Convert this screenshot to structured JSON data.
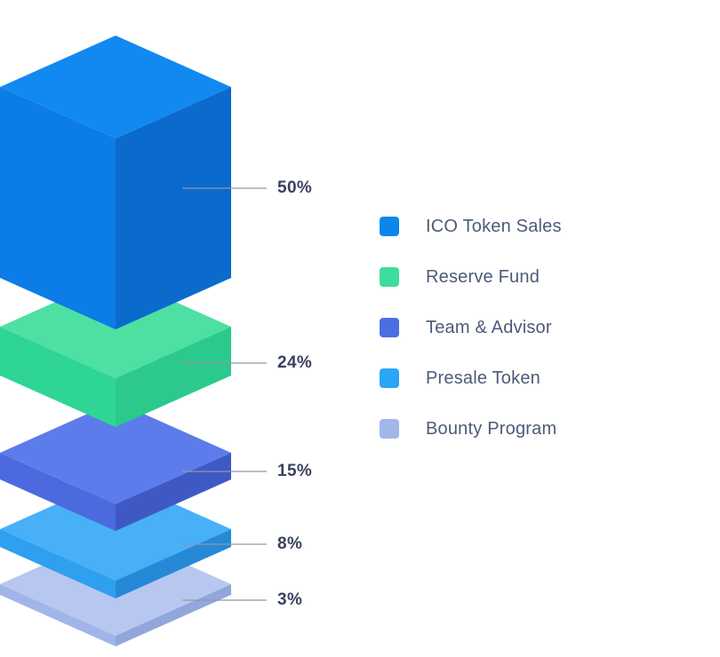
{
  "chart_data": {
    "type": "bar",
    "variant": "isometric-3d-stack",
    "title": "",
    "unit": "%",
    "categories": [
      "ICO Token Sales",
      "Reserve Fund",
      "Team & Advisor",
      "Presale Token",
      "Bounty Program"
    ],
    "values": [
      50,
      24,
      15,
      8,
      3
    ],
    "legend_position": "right",
    "grid": false,
    "layers": [
      {
        "label": "ICO Token Sales",
        "value": 50,
        "percent_label": "50%",
        "face_colors": {
          "top": "#1289f0",
          "left": "#0c7ce6",
          "right": "#0a6bcd"
        }
      },
      {
        "label": "Reserve Fund",
        "value": 24,
        "percent_label": "24%",
        "face_colors": {
          "top": "#4de0a2",
          "left": "#2fd595",
          "right": "#2cc98c"
        }
      },
      {
        "label": "Team & Advisor",
        "value": 15,
        "percent_label": "15%",
        "face_colors": {
          "top": "#5d7cec",
          "left": "#4b6ade",
          "right": "#3f59c4"
        }
      },
      {
        "label": "Presale Token",
        "value": 8,
        "percent_label": "8%",
        "face_colors": {
          "top": "#47b0f7",
          "left": "#2f9ff0",
          "right": "#2589d8"
        }
      },
      {
        "label": "Bounty Program",
        "value": 3,
        "percent_label": "3%",
        "face_colors": {
          "top": "#b8c7f0",
          "left": "#a2b5e9",
          "right": "#93a6dc"
        }
      }
    ]
  },
  "legend": {
    "items": [
      {
        "label": "ICO Token Sales",
        "color": "#0d86ec"
      },
      {
        "label": "Reserve Fund",
        "color": "#3edc9d"
      },
      {
        "label": "Team & Advisor",
        "color": "#4a6fe2"
      },
      {
        "label": "Presale Token",
        "color": "#2ba6f5"
      },
      {
        "label": "Bounty Program",
        "color": "#a3b6ea"
      }
    ]
  },
  "style": {
    "percent_label_color": "#39425f",
    "legend_label_color": "#4d5a79",
    "leader_line_color": "#8f98ac",
    "background": "#ffffff"
  }
}
